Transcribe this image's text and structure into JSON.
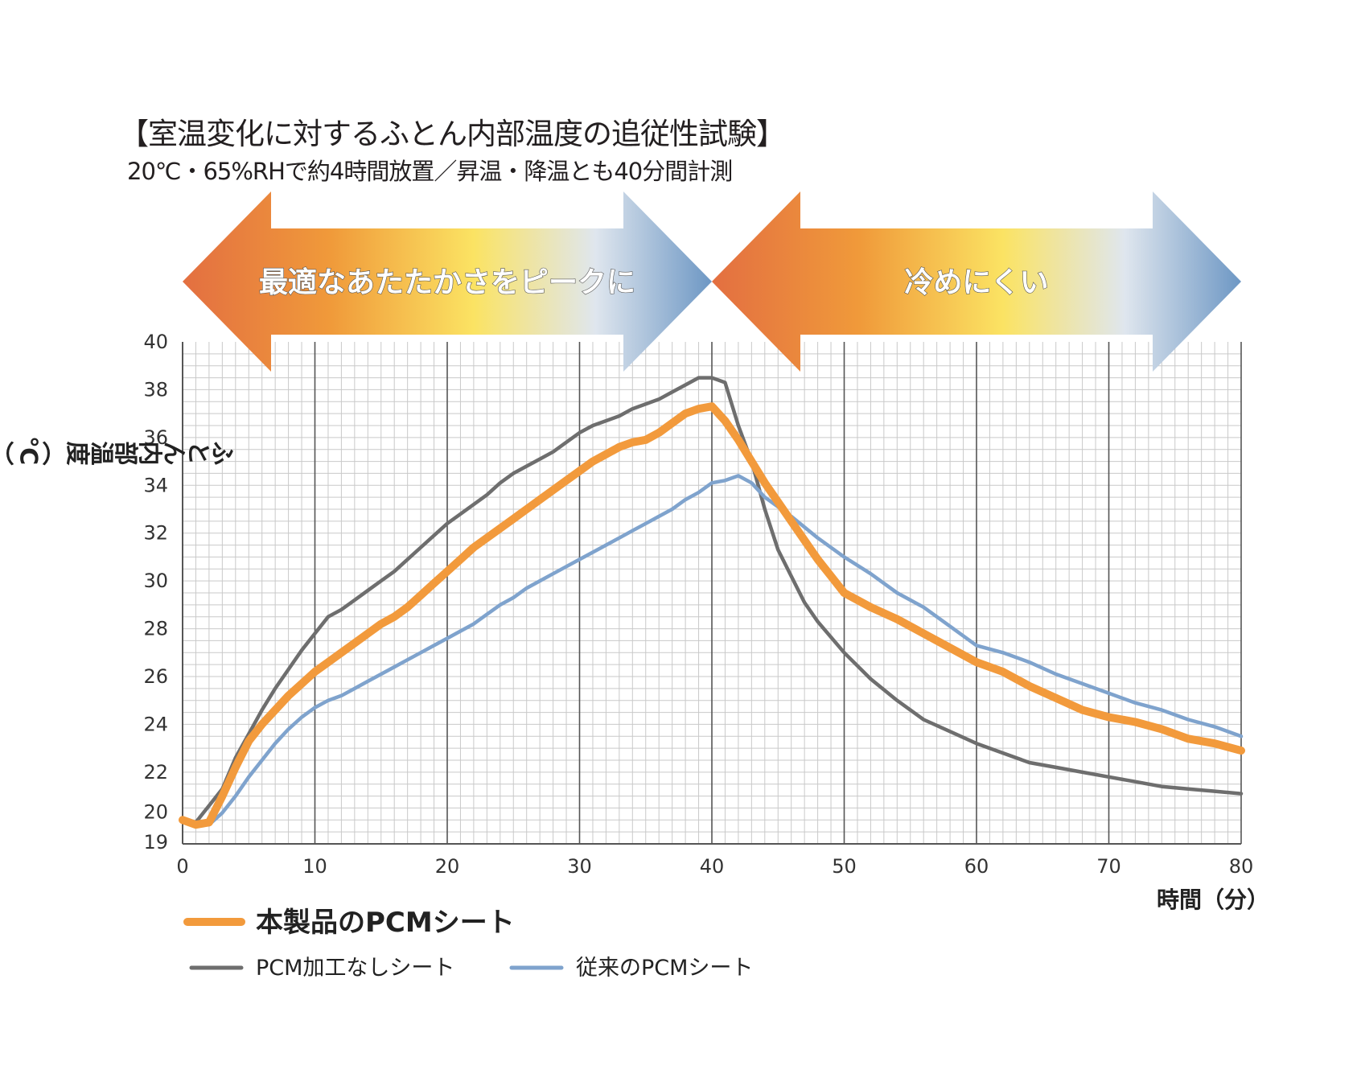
{
  "chart_data": {
    "type": "line",
    "title": "【室温変化に対するふとん内部温度の追従性試験】",
    "subtitle": "20℃・65%RHで約4時間放置／昇温・降温とも40分間計測",
    "xlabel": "時間（分）",
    "ylabel": "ふとん内部温度（℃）",
    "xlim": [
      0,
      80
    ],
    "ylim": [
      19,
      40
    ],
    "x_ticks": [
      "0",
      "10",
      "20",
      "30",
      "40",
      "50",
      "60",
      "70",
      "80"
    ],
    "y_ticks": [
      "19",
      "20",
      "22",
      "24",
      "26",
      "28",
      "30",
      "32",
      "34",
      "36",
      "38",
      "40"
    ],
    "grid": true,
    "legend_position": "bottom-left",
    "banners": [
      {
        "text": "最適なあたたかさをピークに",
        "range": [
          0,
          40
        ]
      },
      {
        "text": "冷めにくい",
        "range": [
          40,
          80
        ]
      }
    ],
    "colors": {
      "banner_warm": "#e36f41",
      "banner_mid": "#fbe363",
      "banner_cool": "#6d97c4",
      "grid_minor": "#c9c9c9",
      "grid_major": "#555555"
    },
    "series": [
      {
        "name": "本製品のPCMシート",
        "color": "#f29a3c",
        "x": [
          0,
          1,
          2,
          3,
          4,
          5,
          6,
          7,
          8,
          9,
          10,
          11,
          12,
          13,
          14,
          15,
          16,
          17,
          18,
          19,
          20,
          21,
          22,
          23,
          24,
          25,
          26,
          27,
          28,
          29,
          30,
          31,
          32,
          33,
          34,
          35,
          36,
          37,
          38,
          39,
          40,
          41,
          42,
          43,
          44,
          45,
          46,
          47,
          48,
          49,
          50,
          52,
          54,
          56,
          58,
          60,
          62,
          64,
          66,
          68,
          70,
          72,
          74,
          76,
          78,
          80
        ],
        "values": [
          20,
          19.8,
          19.9,
          21,
          22.2,
          23.3,
          24,
          24.6,
          25.2,
          25.7,
          26.2,
          26.6,
          27,
          27.4,
          27.8,
          28.2,
          28.5,
          28.9,
          29.4,
          29.9,
          30.4,
          30.9,
          31.4,
          31.8,
          32.2,
          32.6,
          33,
          33.4,
          33.8,
          34.2,
          34.6,
          35,
          35.3,
          35.6,
          35.8,
          35.9,
          36.2,
          36.6,
          37,
          37.2,
          37.3,
          36.7,
          35.9,
          35,
          34.1,
          33.3,
          32.5,
          31.7,
          30.9,
          30.2,
          29.5,
          28.9,
          28.4,
          27.8,
          27.2,
          26.6,
          26.2,
          25.6,
          25.1,
          24.6,
          24.3,
          24.1,
          23.8,
          23.4,
          23.2,
          22.9
        ]
      },
      {
        "name": "PCM加工なしシート",
        "color": "#6e6e6e",
        "x": [
          0,
          1,
          2,
          3,
          4,
          5,
          6,
          7,
          8,
          9,
          10,
          11,
          12,
          13,
          14,
          15,
          16,
          17,
          18,
          19,
          20,
          21,
          22,
          23,
          24,
          25,
          26,
          27,
          28,
          29,
          30,
          31,
          32,
          33,
          34,
          35,
          36,
          37,
          38,
          39,
          40,
          41,
          42,
          43,
          44,
          45,
          46,
          47,
          48,
          50,
          52,
          54,
          56,
          58,
          60,
          62,
          64,
          66,
          68,
          70,
          72,
          74,
          76,
          78,
          80
        ],
        "values": [
          20,
          19.9,
          20.6,
          21.3,
          22.6,
          23.6,
          24.6,
          25.5,
          26.3,
          27.1,
          27.8,
          28.5,
          28.8,
          29.2,
          29.6,
          30,
          30.4,
          30.9,
          31.4,
          31.9,
          32.4,
          32.8,
          33.2,
          33.6,
          34.1,
          34.5,
          34.8,
          35.1,
          35.4,
          35.8,
          36.2,
          36.5,
          36.7,
          36.9,
          37.2,
          37.4,
          37.6,
          37.9,
          38.2,
          38.5,
          38.5,
          38.3,
          36.5,
          35,
          33,
          31.3,
          30.2,
          29.1,
          28.3,
          27,
          25.9,
          25,
          24.2,
          23.7,
          23.2,
          22.8,
          22.4,
          22.2,
          22,
          21.8,
          21.6,
          21.4,
          21.3,
          21.2,
          21.1
        ]
      },
      {
        "name": "従来のPCMシート",
        "color": "#7fa3cd",
        "x": [
          0,
          1,
          2,
          3,
          4,
          5,
          6,
          7,
          8,
          9,
          10,
          11,
          12,
          13,
          14,
          15,
          16,
          17,
          18,
          19,
          20,
          21,
          22,
          23,
          24,
          25,
          26,
          27,
          28,
          29,
          30,
          31,
          32,
          33,
          34,
          35,
          36,
          37,
          38,
          39,
          40,
          41,
          42,
          43,
          44,
          46,
          48,
          50,
          52,
          54,
          56,
          58,
          60,
          62,
          64,
          66,
          68,
          70,
          72,
          74,
          76,
          78,
          80
        ],
        "values": [
          20,
          19.9,
          19.8,
          20.3,
          21,
          21.8,
          22.5,
          23.2,
          23.8,
          24.3,
          24.7,
          25,
          25.2,
          25.5,
          25.8,
          26.1,
          26.4,
          26.7,
          27,
          27.3,
          27.6,
          27.9,
          28.2,
          28.6,
          29,
          29.3,
          29.7,
          30,
          30.3,
          30.6,
          30.9,
          31.2,
          31.5,
          31.8,
          32.1,
          32.4,
          32.7,
          33,
          33.4,
          33.7,
          34.1,
          34.2,
          34.4,
          34.1,
          33.5,
          32.7,
          31.8,
          31,
          30.3,
          29.5,
          28.9,
          28.1,
          27.3,
          27,
          26.6,
          26.1,
          25.7,
          25.3,
          24.9,
          24.6,
          24.2,
          23.9,
          23.5
        ]
      }
    ]
  }
}
